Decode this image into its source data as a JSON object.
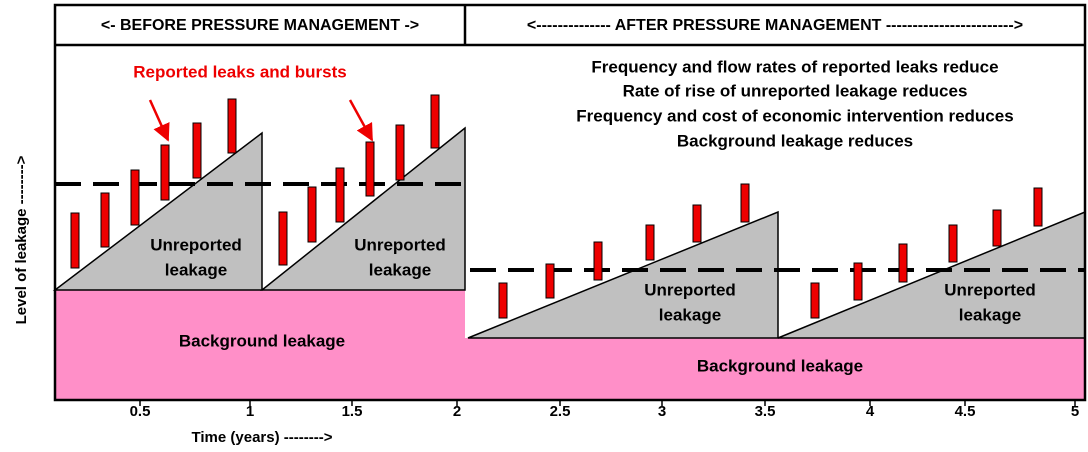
{
  "header": {
    "left": "<- BEFORE PRESSURE MANAGEMENT ->",
    "right": "<-------------- AFTER PRESSURE MANAGEMENT ------------------------>"
  },
  "annotation": "Reported leaks and bursts",
  "notes": [
    "Frequency and flow rates of reported leaks reduce",
    "Rate of rise of unreported leakage reduces",
    "Frequency and cost of economic intervention reduces",
    "Background leakage reduces"
  ],
  "unreported": [
    [
      "Unreported",
      "leakage"
    ],
    [
      "Unreported",
      "leakage"
    ],
    [
      "Unreported",
      "leakage"
    ],
    [
      "Unreported",
      "leakage"
    ]
  ],
  "background": [
    "Background leakage",
    "Background leakage"
  ],
  "x_axis": {
    "label": "Time (years) -------->",
    "ticks": [
      0.5,
      1,
      1.5,
      2,
      2.5,
      3,
      3.5,
      4,
      4.5,
      5
    ]
  },
  "y_axis": {
    "label": "Level of leakage -------->"
  }
}
